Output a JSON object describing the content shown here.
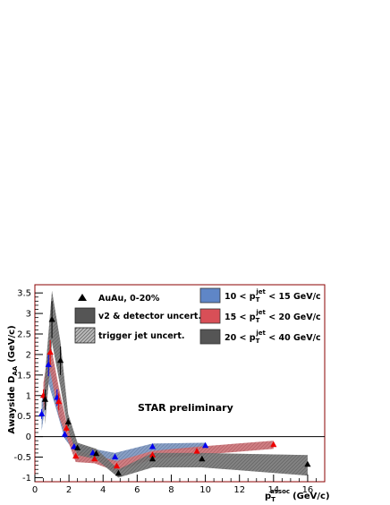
{
  "chart_data": {
    "type": "scatter",
    "xlabel": "p_T^assoc (GeV/c)",
    "ylabel": "Awayside D_AA (GeV/c)",
    "x_axis": {
      "main": "p",
      "sub": "T",
      "sup": "assoc",
      "unit": "(GeV/c)"
    },
    "y_axis": {
      "main": "Awayside D",
      "sub": "AA",
      "unit": "(GeV/c)"
    },
    "xlim": [
      0,
      17
    ],
    "ylim": [
      -1.1,
      3.7
    ],
    "xticks": [
      "0",
      "2",
      "4",
      "6",
      "8",
      "10",
      "12",
      "14",
      "16"
    ],
    "yticks": [
      "-1",
      "-0.5",
      "0",
      "0.5",
      "1",
      "1.5",
      "2",
      "2.5",
      "3",
      "3.5"
    ],
    "annotation": "STAR preliminary",
    "legend_left": [
      {
        "label": "AuAu, 0-20%",
        "marker": "triangle"
      },
      {
        "label": "v2 & detector uncert.",
        "marker": "box-solid"
      },
      {
        "label": "trigger jet uncert.",
        "marker": "box-hatched"
      }
    ],
    "legend_right": [
      {
        "pre": "10 < p",
        "sub": "T",
        "sup": "jet",
        "post": " < 15 GeV/c",
        "color": "#5f86c7"
      },
      {
        "pre": "15 < p",
        "sub": "T",
        "sup": "jet",
        "post": " < 20 GeV/c",
        "color": "#d84f57"
      },
      {
        "pre": "20 < p",
        "sub": "T",
        "sup": "jet",
        "post": " < 40 GeV/c",
        "color": "#555555"
      }
    ],
    "series": [
      {
        "name": "10 < p_T^jet < 15 GeV/c",
        "color": "#0000ee",
        "band_color": "#5f86c7",
        "x": [
          0.4,
          0.8,
          1.3,
          1.75,
          2.3,
          3.4,
          4.7,
          6.9,
          10.0
        ],
        "y": [
          0.55,
          1.75,
          0.95,
          0.05,
          -0.25,
          -0.4,
          -0.5,
          -0.25,
          -0.22
        ],
        "yerr": [
          0.12,
          0.28,
          0.2,
          0.08,
          0.06,
          0.05,
          0.05,
          0.05,
          0.05
        ],
        "band_lo": [
          0.15,
          1.3,
          0.6,
          -0.05,
          -0.35,
          -0.5,
          -0.62,
          -0.35,
          -0.3
        ],
        "band_hi": [
          0.85,
          2.0,
          1.3,
          0.15,
          -0.15,
          -0.3,
          -0.4,
          -0.17,
          -0.15
        ]
      },
      {
        "name": "15 < p_T^jet < 20 GeV/c",
        "color": "#ee0000",
        "band_color": "#d84f57",
        "x": [
          0.5,
          0.9,
          1.4,
          1.85,
          2.4,
          3.5,
          4.8,
          6.9,
          9.5,
          14.0
        ],
        "y": [
          1.0,
          2.05,
          0.85,
          0.2,
          -0.48,
          -0.55,
          -0.72,
          -0.45,
          -0.36,
          -0.2
        ],
        "yerr": [
          0.15,
          0.3,
          0.2,
          0.08,
          0.05,
          0.05,
          0.05,
          0.05,
          0.05,
          0.05
        ],
        "band_lo": [
          0.6,
          1.6,
          0.5,
          0.0,
          -0.62,
          -0.65,
          -0.85,
          -0.55,
          -0.45,
          -0.3
        ],
        "band_hi": [
          1.3,
          2.3,
          1.2,
          0.35,
          -0.35,
          -0.45,
          -0.6,
          -0.35,
          -0.25,
          -0.1
        ]
      },
      {
        "name": "20 < p_T^jet < 40 GeV/c",
        "color": "#000000",
        "band_color": "#555555",
        "x": [
          0.6,
          1.0,
          1.5,
          1.95,
          2.5,
          3.6,
          4.9,
          6.9,
          9.8,
          16.0
        ],
        "y": [
          0.9,
          2.85,
          1.85,
          0.35,
          -0.28,
          -0.42,
          -0.9,
          -0.55,
          -0.55,
          -0.68
        ],
        "yerr": [
          0.25,
          0.45,
          0.35,
          0.1,
          0.06,
          0.05,
          0.05,
          0.05,
          0.05,
          0.05
        ],
        "band_lo": [
          0.3,
          2.3,
          1.2,
          0.15,
          -0.45,
          -0.55,
          -1.0,
          -0.75,
          -0.75,
          -0.95
        ],
        "band_hi": [
          1.5,
          3.55,
          2.3,
          0.55,
          -0.15,
          -0.3,
          -0.8,
          -0.4,
          -0.4,
          -0.45
        ]
      }
    ]
  }
}
